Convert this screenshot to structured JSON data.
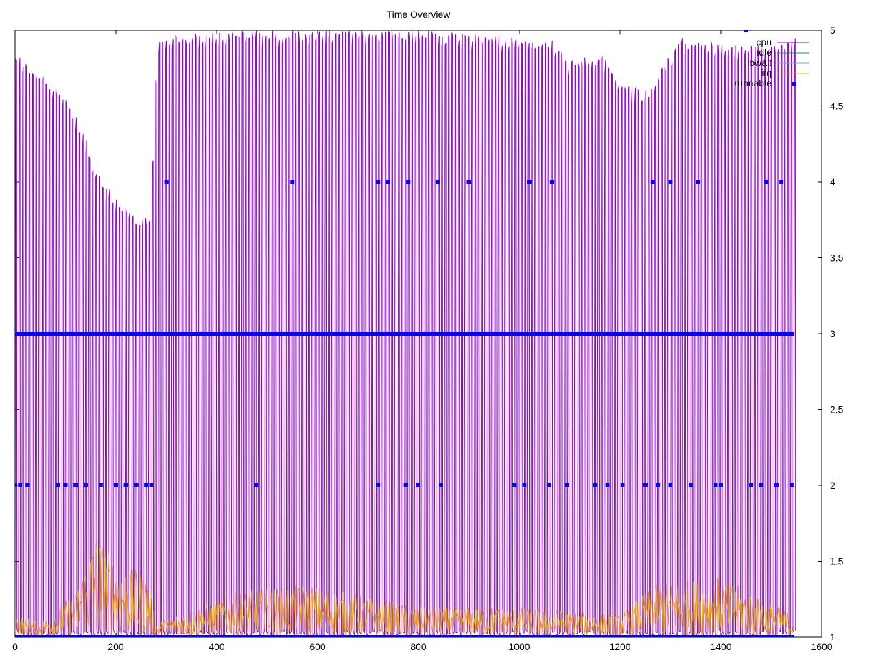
{
  "chart_data": {
    "type": "line",
    "title": "Time Overview",
    "xlabel": "",
    "ylabel": "",
    "xlim": [
      0,
      1600
    ],
    "ylim": [
      1,
      5
    ],
    "x_ticks": [
      0,
      200,
      400,
      600,
      800,
      1000,
      1200,
      1400,
      1600
    ],
    "y_ticks": [
      1,
      1.5,
      2,
      2.5,
      3,
      3.5,
      4,
      4.5,
      5
    ],
    "y_axis_side": "right",
    "grid": false,
    "legend_position": "top-right",
    "x_range_data": [
      0,
      1545
    ],
    "series": [
      {
        "name": "cpu",
        "color": "#9400d3",
        "style": "line",
        "description_values": "oscillates rapidly between about 1.0 and a peak envelope",
        "peak_envelope": [
          [
            0,
            4.85
          ],
          [
            60,
            4.7
          ],
          [
            100,
            4.55
          ],
          [
            130,
            4.35
          ],
          [
            170,
            4.0
          ],
          [
            230,
            3.8
          ],
          [
            265,
            3.75
          ],
          [
            280,
            4.95
          ],
          [
            400,
            5.0
          ],
          [
            800,
            5.0
          ],
          [
            1060,
            4.95
          ],
          [
            1100,
            4.8
          ],
          [
            1160,
            4.85
          ],
          [
            1200,
            4.65
          ],
          [
            1250,
            4.6
          ],
          [
            1290,
            4.8
          ],
          [
            1320,
            4.95
          ],
          [
            1450,
            4.9
          ],
          [
            1545,
            4.95
          ]
        ]
      },
      {
        "name": "idle",
        "color": "#009e73",
        "style": "line",
        "values_note": "stays near 1"
      },
      {
        "name": "iowait",
        "color": "#56b4e9",
        "style": "line",
        "values_note": "stays near 1"
      },
      {
        "name": "irq",
        "color": "#e69f00",
        "style": "line",
        "envelope": [
          [
            0,
            1.15
          ],
          [
            50,
            1.1
          ],
          [
            120,
            1.3
          ],
          [
            160,
            1.7
          ],
          [
            200,
            1.5
          ],
          [
            265,
            1.4
          ],
          [
            280,
            1.1
          ],
          [
            440,
            1.3
          ],
          [
            580,
            1.35
          ],
          [
            800,
            1.2
          ],
          [
            1000,
            1.2
          ],
          [
            1200,
            1.15
          ],
          [
            1270,
            1.35
          ],
          [
            1400,
            1.4
          ],
          [
            1545,
            1.15
          ]
        ]
      },
      {
        "name": "runnable",
        "color": "#0000ff",
        "style": "points",
        "levels": [
          {
            "y": 1,
            "x_ranges": [
              [
                0,
                1545
              ]
            ]
          },
          {
            "y": 2,
            "x": [
              0,
              10,
              25,
              85,
              100,
              120,
              140,
              170,
              200,
              220,
              240,
              260,
              270,
              478,
              720,
              775,
              800,
              845,
              990,
              1010,
              1060,
              1095,
              1150,
              1175,
              1205,
              1250,
              1275,
              1300,
              1340,
              1390,
              1400,
              1460,
              1480,
              1510,
              1540
            ]
          },
          {
            "y": 3,
            "x_ranges": [
              [
                0,
                1545
              ]
            ]
          },
          {
            "y": 4,
            "x": [
              300,
              550,
              720,
              740,
              780,
              838,
              900,
              1020,
              1065,
              1265,
              1300,
              1355,
              1490,
              1520
            ]
          },
          {
            "y": 5,
            "x": [
              1450
            ]
          }
        ]
      }
    ]
  }
}
